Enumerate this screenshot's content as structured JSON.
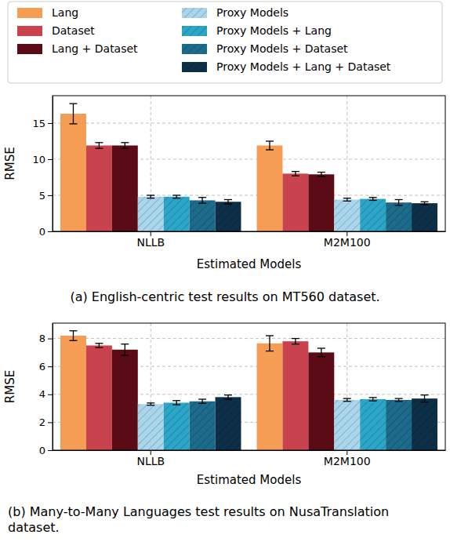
{
  "chart_data": [
    {
      "type": "bar",
      "title": "(a) English-centric test results on MT560 dataset.",
      "x_label": "Estimated Models",
      "y_label": "RMSE",
      "categories": [
        "NLLB",
        "M2M100"
      ],
      "ylim": [
        0,
        18.8
      ],
      "yticks": [
        0,
        5,
        10,
        15
      ],
      "grid": true,
      "legend": "top",
      "series": [
        {
          "name": "Lang",
          "color": "#f59c55",
          "values": [
            16.3,
            11.9
          ],
          "errors": [
            1.4,
            0.6
          ]
        },
        {
          "name": "Dataset",
          "color": "#c9434e",
          "values": [
            11.9,
            8.0
          ],
          "errors": [
            0.4,
            0.3
          ]
        },
        {
          "name": "Lang + Dataset",
          "color": "#5b0b16",
          "values": [
            11.9,
            7.9
          ],
          "errors": [
            0.4,
            0.3
          ]
        },
        {
          "name": "Proxy Models",
          "color": "#a9d6ec",
          "line_style": "hatched",
          "values": [
            4.8,
            4.4
          ],
          "errors": [
            0.2,
            0.2
          ]
        },
        {
          "name": "Proxy Models + Lang",
          "color": "#2ba6c8",
          "line_style": "hatched",
          "values": [
            4.8,
            4.5
          ],
          "errors": [
            0.2,
            0.2
          ]
        },
        {
          "name": "Proxy Models + Dataset",
          "color": "#1c6b8b",
          "line_style": "hatched",
          "values": [
            4.3,
            4.0
          ],
          "errors": [
            0.4,
            0.4
          ]
        },
        {
          "name": "Proxy Models + Lang + Dataset",
          "color": "#0e2f48",
          "line_style": "hatched",
          "values": [
            4.1,
            3.9
          ],
          "errors": [
            0.3,
            0.2
          ]
        }
      ]
    },
    {
      "type": "bar",
      "title": "(b) Many-to-Many Languages test results on NusaTranslation dataset.",
      "x_label": "Estimated Models",
      "y_label": "RMSE",
      "categories": [
        "NLLB",
        "M2M100"
      ],
      "ylim": [
        0,
        9.1
      ],
      "yticks": [
        0,
        2,
        4,
        6,
        8
      ],
      "grid": true,
      "series": [
        {
          "name": "Lang",
          "color": "#f59c55",
          "values": [
            8.2,
            7.65
          ],
          "errors": [
            0.35,
            0.55
          ]
        },
        {
          "name": "Dataset",
          "color": "#c9434e",
          "values": [
            7.5,
            7.8
          ],
          "errors": [
            0.15,
            0.2
          ]
        },
        {
          "name": "Lang + Dataset",
          "color": "#5b0b16",
          "values": [
            7.2,
            7.0
          ],
          "errors": [
            0.4,
            0.3
          ]
        },
        {
          "name": "Proxy Models",
          "color": "#a9d6ec",
          "line_style": "hatched",
          "values": [
            3.3,
            3.6
          ],
          "errors": [
            0.08,
            0.1
          ]
        },
        {
          "name": "Proxy Models + Lang",
          "color": "#2ba6c8",
          "line_style": "hatched",
          "values": [
            3.4,
            3.65
          ],
          "errors": [
            0.15,
            0.12
          ]
        },
        {
          "name": "Proxy Models + Dataset",
          "color": "#1c6b8b",
          "line_style": "hatched",
          "values": [
            3.5,
            3.6
          ],
          "errors": [
            0.15,
            0.1
          ]
        },
        {
          "name": "Proxy Models + Lang + Dataset",
          "color": "#0e2f48",
          "line_style": "hatched",
          "values": [
            3.8,
            3.7
          ],
          "errors": [
            0.15,
            0.25
          ]
        }
      ]
    }
  ]
}
